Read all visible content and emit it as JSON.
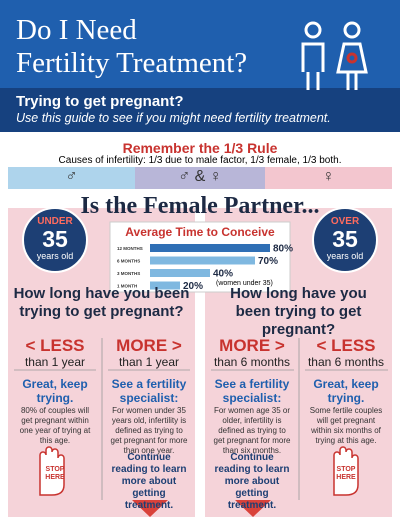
{
  "header": {
    "title_line1": "Do I Need",
    "title_line2": "Fertility Treatment?",
    "subtitle": "Trying to get pregnant?",
    "tagline": "Use this guide to see if you might need fertility treatment."
  },
  "rule": {
    "title": "Remember the 1/3 Rule",
    "text": "Causes of infertility: 1/3 due to male factor, 1/3 female, 1/3 both.",
    "segments": [
      "♂",
      "♂ & ♀",
      "♀"
    ]
  },
  "question": "Is the Female Partner...",
  "chart": {
    "title": "Average Time to Conceive",
    "categories": [
      "12 MONTHS",
      "6 MONTHS",
      "3 MONTHS",
      "1 MONTH"
    ],
    "values": [
      80,
      70,
      40,
      20
    ],
    "value_labels": [
      "80%",
      "70%",
      "40%",
      "20%"
    ],
    "note": "(women under 35)"
  },
  "left": {
    "age_top": "UNDER",
    "age_num": "35",
    "age_bottom": "years old",
    "question": "How long have you been trying to get pregnant?",
    "options": [
      {
        "head": "< LESS",
        "sub": "than 1 year",
        "advice": "Great, keep trying.",
        "detail": "80% of couples will get pregnant within one year of trying at this age.",
        "stop": "STOP HERE"
      },
      {
        "head": "MORE >",
        "sub": "than 1 year",
        "advice": "See a fertility specialist:",
        "detail": "For women under 35 years old, infertility is defined as trying to get pregnant for more than one year.",
        "cta": "Continue reading to learn more about getting treatment."
      }
    ]
  },
  "right": {
    "age_top": "OVER",
    "age_num": "35",
    "age_bottom": "years old",
    "question": "How long have you been trying to get pregnant?",
    "options": [
      {
        "head": "MORE >",
        "sub": "than 6 months",
        "advice": "See a fertility specialist:",
        "detail": "For women age 35 or older, infertility is defined as trying to get pregnant for more than six months.",
        "cta": "Continue reading to learn more about getting treatment."
      },
      {
        "head": "< LESS",
        "sub": "than 6 months",
        "advice": "Great, keep trying.",
        "detail": "Some fertile couples will get pregnant within six months of trying at this age.",
        "stop": "STOP HERE"
      }
    ]
  }
}
